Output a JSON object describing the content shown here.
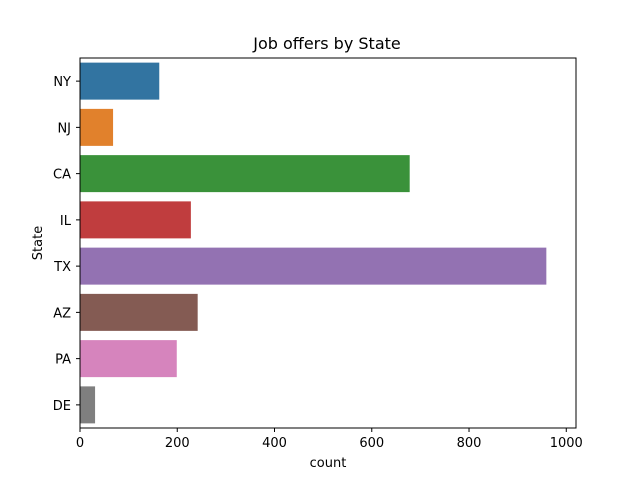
{
  "chart_data": {
    "type": "bar",
    "orientation": "horizontal",
    "title": "Job offers by State",
    "xlabel": "count",
    "ylabel": "State",
    "categories": [
      "NY",
      "NJ",
      "CA",
      "IL",
      "TX",
      "AZ",
      "PA",
      "DE"
    ],
    "values": [
      163,
      68,
      678,
      228,
      959,
      242,
      199,
      31
    ],
    "colors": [
      "#3274a1",
      "#e1812c",
      "#3a923a",
      "#c03d3e",
      "#9372b2",
      "#845b53",
      "#d684bd",
      "#7f7f7f"
    ],
    "xlim": [
      0,
      1020
    ],
    "xticks": [
      0,
      200,
      400,
      600,
      800,
      1000
    ],
    "grid": false,
    "legend": "none"
  }
}
